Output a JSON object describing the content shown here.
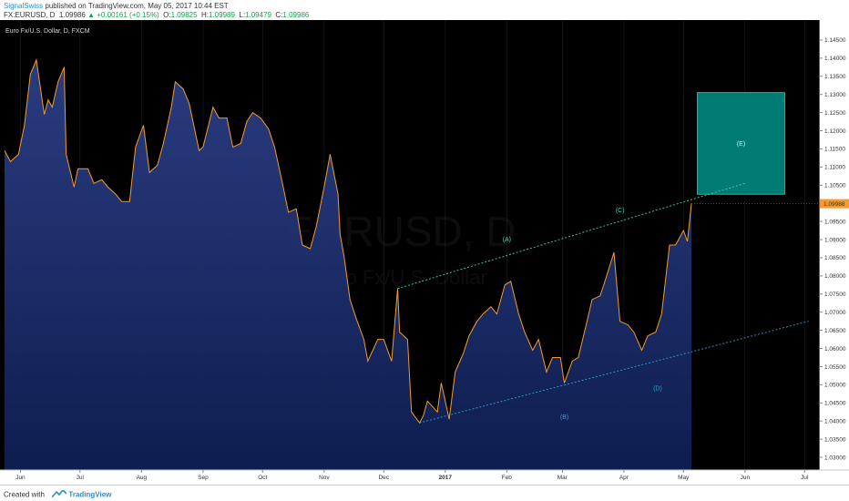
{
  "header": {
    "author": "SignalSwiss",
    "published_text": "published on TradingView.com, May 05, 2017 10:44 EST",
    "symbol_line": "FX:EURUSD, D",
    "last_price": "1.09986",
    "change_arrow": "▲",
    "change": "+0.00161 (+0.15%)",
    "o_label": "O:",
    "o_value": "1.09825",
    "h_label": "H:",
    "h_value": "1.09989",
    "l_label": "L:",
    "l_value": "1.09479",
    "c_label": "C:",
    "c_value": "1.09986"
  },
  "chart": {
    "pane_title": "Euro Fx/U.S. Dollar, D, FXCM",
    "watermark_symbol": "EURUSD, D",
    "watermark_name": "Euro Fx/U.S. Dollar",
    "price_badge": "1.09988",
    "colors": {
      "background": "#000000",
      "line": "#f39b2e",
      "fill_top": "#2c3f86",
      "fill_bottom": "#0f1f54",
      "channel_upper": "#39d6b8",
      "channel_lower": "#2f9fd1",
      "target_box": "#00857d",
      "badge": "#f39b2e",
      "label_upper": "#37d6b2",
      "label_lower": "#2f9fd1"
    }
  },
  "chart_data": {
    "type": "area",
    "ylim": [
      1.0265,
      1.1505
    ],
    "y_ticks": [
      "1.14500",
      "1.14000",
      "1.13500",
      "1.13000",
      "1.12500",
      "1.12000",
      "1.11500",
      "1.11000",
      "1.10500",
      "1.10000",
      "1.09500",
      "1.09000",
      "1.08500",
      "1.08000",
      "1.07500",
      "1.07000",
      "1.06500",
      "1.06000",
      "1.05500",
      "1.05000",
      "1.04500",
      "1.04000",
      "1.03500",
      "1.03000"
    ],
    "x_ticks": [
      "Jun",
      "Jul",
      "Aug",
      "Sep",
      "Oct",
      "Nov",
      "Dec",
      "2017",
      "Feb",
      "Mar",
      "Apr",
      "May",
      "Jun",
      "Jul"
    ],
    "series": [
      {
        "points": [
          [
            "2016-05-24",
            1.1145
          ],
          [
            "2016-05-27",
            1.1115
          ],
          [
            "2016-05-31",
            1.1135
          ],
          [
            "2016-06-03",
            1.1215
          ],
          [
            "2016-06-06",
            1.1355
          ],
          [
            "2016-06-09",
            1.1395
          ],
          [
            "2016-06-13",
            1.1245
          ],
          [
            "2016-06-15",
            1.1285
          ],
          [
            "2016-06-17",
            1.1265
          ],
          [
            "2016-06-20",
            1.1335
          ],
          [
            "2016-06-23",
            1.1375
          ],
          [
            "2016-06-24",
            1.1135
          ],
          [
            "2016-06-28",
            1.1045
          ],
          [
            "2016-06-30",
            1.1095
          ],
          [
            "2016-07-05",
            1.1095
          ],
          [
            "2016-07-08",
            1.1055
          ],
          [
            "2016-07-12",
            1.1065
          ],
          [
            "2016-07-15",
            1.1045
          ],
          [
            "2016-07-19",
            1.1025
          ],
          [
            "2016-07-22",
            1.1005
          ],
          [
            "2016-07-26",
            1.1005
          ],
          [
            "2016-07-29",
            1.1155
          ],
          [
            "2016-08-02",
            1.1215
          ],
          [
            "2016-08-05",
            1.1085
          ],
          [
            "2016-08-09",
            1.1105
          ],
          [
            "2016-08-12",
            1.1165
          ],
          [
            "2016-08-16",
            1.1265
          ],
          [
            "2016-08-18",
            1.1335
          ],
          [
            "2016-08-22",
            1.1315
          ],
          [
            "2016-08-25",
            1.1275
          ],
          [
            "2016-08-30",
            1.1145
          ],
          [
            "2016-09-01",
            1.1155
          ],
          [
            "2016-09-06",
            1.1265
          ],
          [
            "2016-09-09",
            1.1235
          ],
          [
            "2016-09-13",
            1.1235
          ],
          [
            "2016-09-16",
            1.1155
          ],
          [
            "2016-09-20",
            1.1165
          ],
          [
            "2016-09-23",
            1.1225
          ],
          [
            "2016-09-26",
            1.125
          ],
          [
            "2016-09-30",
            1.1235
          ],
          [
            "2016-10-04",
            1.1205
          ],
          [
            "2016-10-07",
            1.1155
          ],
          [
            "2016-10-11",
            1.1055
          ],
          [
            "2016-10-14",
            1.0975
          ],
          [
            "2016-10-18",
            1.0985
          ],
          [
            "2016-10-21",
            1.0885
          ],
          [
            "2016-10-25",
            1.0875
          ],
          [
            "2016-10-28",
            1.0935
          ],
          [
            "2016-11-01",
            1.1045
          ],
          [
            "2016-11-04",
            1.1135
          ],
          [
            "2016-11-08",
            1.1025
          ],
          [
            "2016-11-09",
            1.0915
          ],
          [
            "2016-11-11",
            1.0855
          ],
          [
            "2016-11-14",
            1.0735
          ],
          [
            "2016-11-17",
            1.0685
          ],
          [
            "2016-11-21",
            1.0625
          ],
          [
            "2016-11-23",
            1.0565
          ],
          [
            "2016-11-28",
            1.0625
          ],
          [
            "2016-12-01",
            1.0625
          ],
          [
            "2016-12-05",
            1.0565
          ],
          [
            "2016-12-08",
            1.0765
          ],
          [
            "2016-12-09",
            1.0645
          ],
          [
            "2016-12-13",
            1.0625
          ],
          [
            "2016-12-15",
            1.0425
          ],
          [
            "2016-12-19",
            1.0395
          ],
          [
            "2016-12-21",
            1.0415
          ],
          [
            "2016-12-23",
            1.0455
          ],
          [
            "2016-12-28",
            1.0425
          ],
          [
            "2016-12-30",
            1.0505
          ],
          [
            "2017-01-03",
            1.0405
          ],
          [
            "2017-01-06",
            1.0535
          ],
          [
            "2017-01-10",
            1.0585
          ],
          [
            "2017-01-13",
            1.0635
          ],
          [
            "2017-01-17",
            1.0675
          ],
          [
            "2017-01-20",
            1.0695
          ],
          [
            "2017-01-24",
            1.0715
          ],
          [
            "2017-01-27",
            1.0695
          ],
          [
            "2017-01-31",
            1.0775
          ],
          [
            "2017-02-03",
            1.0785
          ],
          [
            "2017-02-07",
            1.0695
          ],
          [
            "2017-02-10",
            1.0645
          ],
          [
            "2017-02-14",
            1.0595
          ],
          [
            "2017-02-17",
            1.0625
          ],
          [
            "2017-02-21",
            1.0535
          ],
          [
            "2017-02-24",
            1.0575
          ],
          [
            "2017-02-28",
            1.0575
          ],
          [
            "2017-03-02",
            1.0505
          ],
          [
            "2017-03-06",
            1.0565
          ],
          [
            "2017-03-09",
            1.0575
          ],
          [
            "2017-03-13",
            1.0665
          ],
          [
            "2017-03-16",
            1.0735
          ],
          [
            "2017-03-20",
            1.0745
          ],
          [
            "2017-03-23",
            1.0795
          ],
          [
            "2017-03-27",
            1.0865
          ],
          [
            "2017-03-30",
            1.0675
          ],
          [
            "2017-04-03",
            1.0665
          ],
          [
            "2017-04-06",
            1.0645
          ],
          [
            "2017-04-10",
            1.0595
          ],
          [
            "2017-04-13",
            1.0635
          ],
          [
            "2017-04-17",
            1.0645
          ],
          [
            "2017-04-20",
            1.0695
          ],
          [
            "2017-04-24",
            1.0885
          ],
          [
            "2017-04-27",
            1.0885
          ],
          [
            "2017-05-01",
            1.0925
          ],
          [
            "2017-05-03",
            1.0895
          ],
          [
            "2017-05-05",
            1.0999
          ]
        ]
      }
    ],
    "annotations": {
      "upper_channel": {
        "from": [
          "2016-12-08",
          1.0765
        ],
        "to": [
          "2017-06-01",
          1.1055
        ]
      },
      "lower_channel": {
        "from": [
          "2016-12-19",
          1.0395
        ],
        "to": [
          "2017-07-03",
          1.0675
        ]
      },
      "target_zone": {
        "from_date": "2017-05-08",
        "to_date": "2017-06-21",
        "price_low": 1.1025,
        "price_high": 1.1305,
        "label": "(E)"
      },
      "wave_labels": [
        {
          "text": "(A)",
          "date": "2017-02-01",
          "price": 1.0895,
          "tone": "upper"
        },
        {
          "text": "(C)",
          "date": "2017-03-30",
          "price": 1.0975,
          "tone": "upper"
        },
        {
          "text": "(B)",
          "date": "2017-03-02",
          "price": 1.0405,
          "tone": "lower"
        },
        {
          "text": "(D)",
          "date": "2017-04-18",
          "price": 1.0485,
          "tone": "lower"
        }
      ]
    }
  },
  "footer": {
    "created_with": "Created with",
    "brand": "TradingView"
  }
}
